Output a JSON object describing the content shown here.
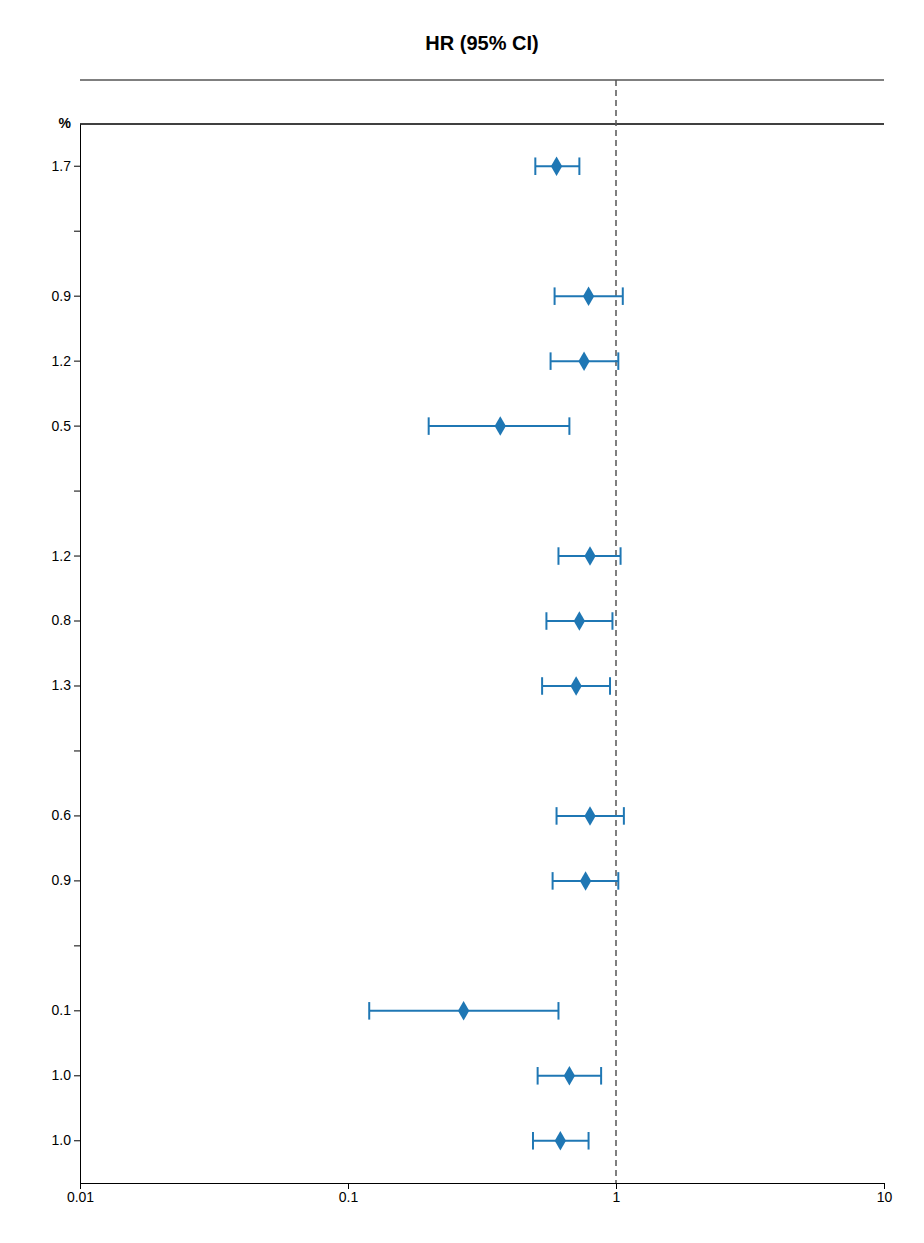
{
  "chart_data": {
    "type": "forest",
    "title": "HR (95% CI)",
    "category_header": "%",
    "categories": [
      "1.7",
      null,
      "0.9",
      "1.2",
      "0.5",
      null,
      "1.2",
      "0.8",
      "1.3",
      null,
      "0.6",
      "0.9",
      null,
      "0.1",
      "1.0",
      "1.0"
    ],
    "values": [
      0.6,
      null,
      0.79,
      0.76,
      0.37,
      null,
      0.8,
      0.73,
      0.71,
      null,
      0.8,
      0.77,
      null,
      0.27,
      0.67,
      0.62
    ],
    "ci_lo": [
      0.5,
      null,
      0.59,
      0.57,
      0.2,
      null,
      0.61,
      0.55,
      0.53,
      null,
      0.6,
      0.58,
      null,
      0.12,
      0.51,
      0.49
    ],
    "ci_hi": [
      0.73,
      null,
      1.06,
      1.02,
      0.67,
      null,
      1.04,
      0.97,
      0.95,
      null,
      1.07,
      1.02,
      null,
      0.61,
      0.88,
      0.79
    ],
    "reference_line": 1,
    "log": "x",
    "xlim": [
      0.01,
      10
    ],
    "xticks": [
      0.01,
      0.1,
      1,
      10
    ],
    "grid": false
  }
}
